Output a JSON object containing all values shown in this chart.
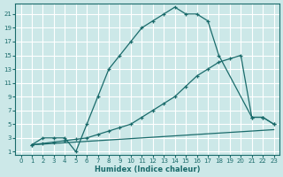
{
  "xlabel": "Humidex (Indice chaleur)",
  "bg_color": "#cce8e8",
  "grid_color": "#ffffff",
  "line_color": "#1a6b6b",
  "xlim": [
    -0.5,
    23.5
  ],
  "ylim": [
    0.5,
    22.5
  ],
  "xticks": [
    0,
    1,
    2,
    3,
    4,
    5,
    6,
    7,
    8,
    9,
    10,
    11,
    12,
    13,
    14,
    15,
    16,
    17,
    18,
    19,
    20,
    21,
    22,
    23
  ],
  "yticks": [
    1,
    3,
    5,
    7,
    9,
    11,
    13,
    15,
    17,
    19,
    21
  ],
  "line1_x": [
    1,
    2,
    3,
    4,
    5,
    6,
    7,
    8,
    9,
    10,
    11,
    12,
    13,
    14,
    15,
    16,
    17,
    18,
    21,
    22,
    23
  ],
  "line1_y": [
    2,
    3,
    3,
    3,
    1,
    5,
    9,
    13,
    15,
    17,
    19,
    20,
    21,
    22,
    21,
    21,
    20,
    15,
    6,
    6,
    5
  ],
  "line2_x": [
    1,
    2,
    3,
    4,
    5,
    6,
    7,
    8,
    9,
    10,
    11,
    12,
    13,
    14,
    15,
    16,
    17,
    18,
    19,
    20,
    21,
    22,
    23
  ],
  "line2_y": [
    2,
    2.2,
    2.4,
    2.6,
    2.8,
    3.0,
    3.5,
    4.0,
    4.5,
    5.0,
    6.0,
    7.0,
    8.0,
    9.0,
    10.5,
    12.0,
    13.0,
    14.0,
    14.5,
    15,
    6,
    6,
    5
  ],
  "line3_x": [
    1,
    2,
    3,
    4,
    5,
    6,
    7,
    8,
    9,
    10,
    11,
    12,
    13,
    14,
    15,
    16,
    17,
    18,
    19,
    20,
    21,
    22,
    23
  ],
  "line3_y": [
    2,
    2.1,
    2.2,
    2.3,
    2.4,
    2.5,
    2.6,
    2.7,
    2.8,
    2.9,
    3.0,
    3.1,
    3.2,
    3.3,
    3.4,
    3.5,
    3.6,
    3.7,
    3.8,
    3.9,
    4.0,
    4.1,
    4.2
  ]
}
